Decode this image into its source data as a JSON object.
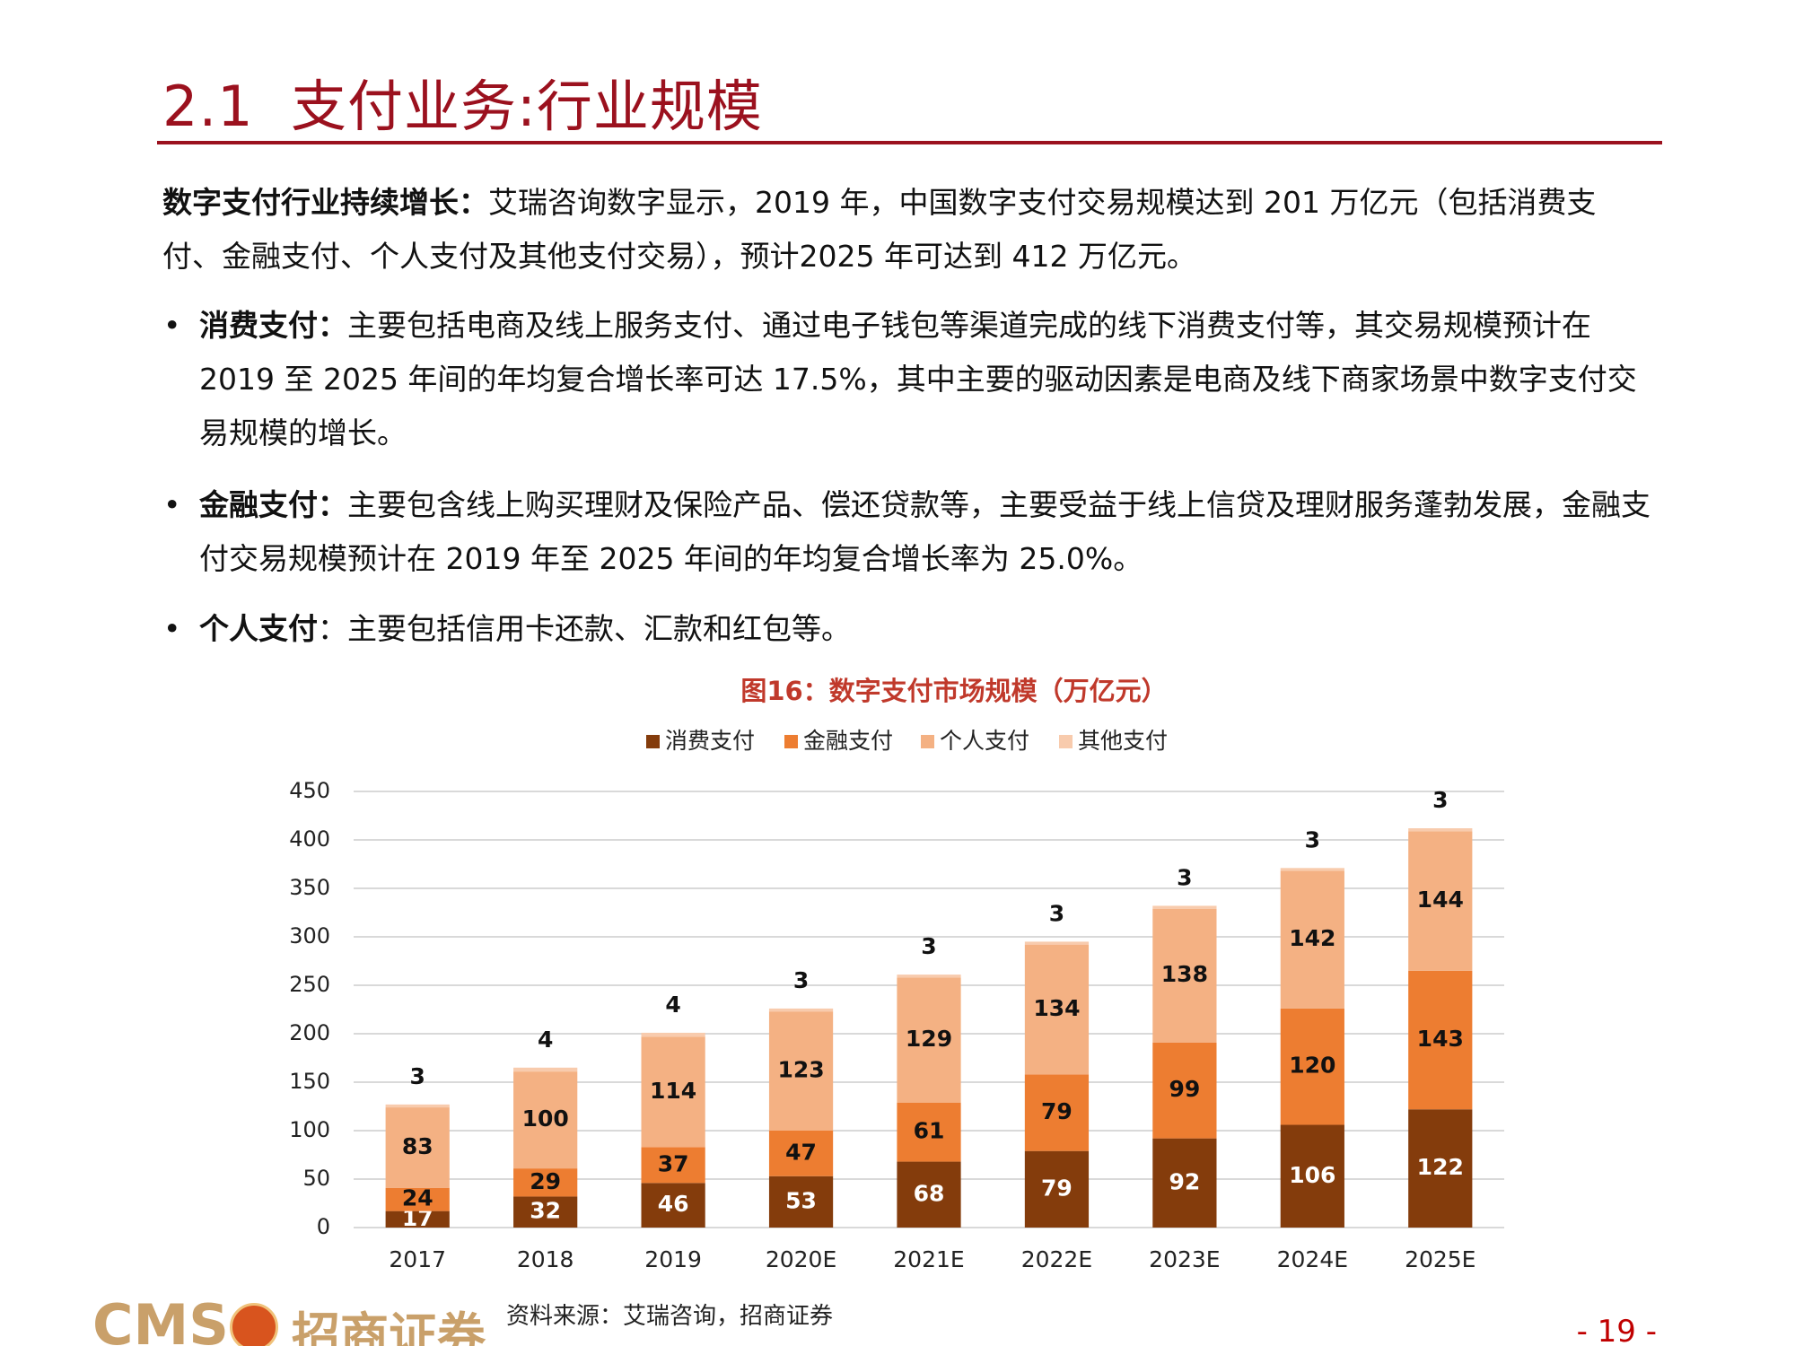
{
  "header": {
    "title": "2.1  支付业务:行业规模"
  },
  "intro": {
    "lead": "数字支付行业持续增长：",
    "text": "艾瑞咨询数字显示，2019 年，中国数字支付交易规模达到 201 万亿元（包括消费支付、金融支付、个人支付及其他支付交易），预计2025 年可达到 412 万亿元。"
  },
  "bullets": [
    {
      "label": "消费支付：",
      "text": "主要包括电商及线上服务支付、通过电子钱包等渠道完成的线下消费支付等，其交易规模预计在 2019 至 2025 年间的年均复合增长率可达 17.5%，其中主要的驱动因素是电商及线下商家场景中数字支付交易规模的增长。"
    },
    {
      "label": "金融支付：",
      "text": "主要包含线上购买理财及保险产品、偿还贷款等，主要受益于线上信贷及理财服务蓬勃发展，金融支付交易规模预计在 2019 年至 2025 年间的年均复合增长率为 25.0%。"
    },
    {
      "label": "个人支付",
      "text": "：主要包括信用卡还款、汇款和红包等。"
    }
  ],
  "chart_data": {
    "type": "stacked_bar",
    "title": "图16：数字支付市场规模（万亿元）",
    "categories": [
      "2017",
      "2018",
      "2019",
      "2020E",
      "2021E",
      "2022E",
      "2023E",
      "2024E",
      "2025E"
    ],
    "series": [
      {
        "name": "消费支付",
        "color": "#843c0c",
        "values": [
          17,
          32,
          46,
          53,
          68,
          79,
          92,
          106,
          122
        ]
      },
      {
        "name": "金融支付",
        "color": "#ed7d31",
        "values": [
          24,
          29,
          37,
          47,
          61,
          79,
          99,
          120,
          143
        ]
      },
      {
        "name": "个人支付",
        "color": "#f4b183",
        "values": [
          83,
          100,
          114,
          123,
          129,
          134,
          138,
          142,
          144
        ]
      },
      {
        "name": "其他支付",
        "color": "#f8cbad",
        "values": [
          3,
          4,
          4,
          3,
          3,
          3,
          3,
          3,
          3
        ]
      }
    ],
    "ylim": [
      0,
      450
    ],
    "yticks": [
      0,
      50,
      100,
      150,
      200,
      250,
      300,
      350,
      400,
      450
    ],
    "grid": true
  },
  "footer": {
    "source": "资料来源：艾瑞咨询，招商证券",
    "logo": "CMS",
    "logo_name": "招商证券",
    "page": "- 19 -"
  }
}
